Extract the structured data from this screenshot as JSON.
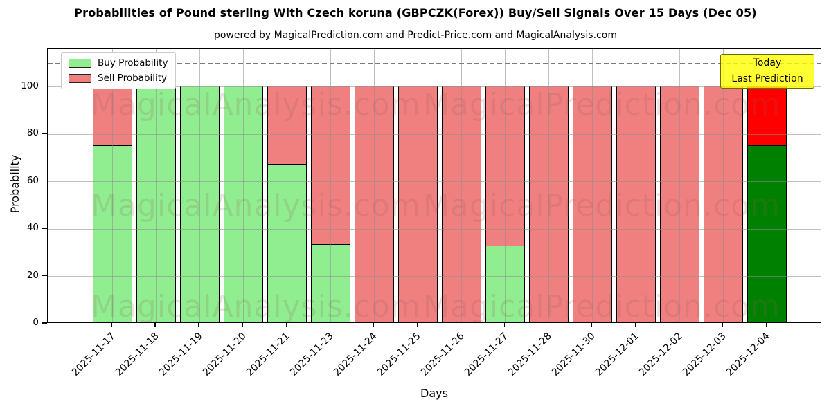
{
  "title": "Probabilities of Pound sterling With Czech koruna (GBPCZK(Forex)) Buy/Sell Signals Over 15 Days (Dec 05)",
  "subtitle": "powered by MagicalPrediction.com and Predict-Price.com and MagicalAnalysis.com",
  "watermarks": {
    "left_text": "MagicalAnalysis.com",
    "right_text": "MagicalPrediction.com"
  },
  "legend": [
    {
      "label": "Buy Probability",
      "color": "#90ee90"
    },
    {
      "label": "Sell Probability",
      "color": "#f08080"
    }
  ],
  "annotation": {
    "line1": "Today",
    "line2": "Last Prediction",
    "bg_color": "#ffff00"
  },
  "colors": {
    "buy": "#90ee90",
    "sell": "#f08080",
    "buy_today": "#008000",
    "sell_today": "#ff0000",
    "bar_edge": "#000000",
    "grid": "#8c8c8c",
    "dashed_line": "#7a7a7a"
  },
  "chart_data": {
    "type": "bar",
    "stacked": true,
    "title": "Probabilities of Pound sterling With Czech koruna (GBPCZK(Forex)) Buy/Sell Signals Over 15 Days (Dec 05)",
    "xlabel": "Days",
    "ylabel": "Probability",
    "ylim": [
      0,
      116
    ],
    "yticks": [
      0,
      20,
      40,
      60,
      80,
      100
    ],
    "dashed_line_y": 110,
    "grid": true,
    "legend_position": "upper left",
    "categories": [
      "2025-11-17",
      "2025-11-18",
      "2025-11-19",
      "2025-11-20",
      "2025-11-21",
      "2025-11-23",
      "2025-11-24",
      "2025-11-25",
      "2025-11-26",
      "2025-11-27",
      "2025-11-28",
      "2025-11-30",
      "2025-12-01",
      "2025-12-02",
      "2025-12-03",
      "2025-12-04"
    ],
    "series": [
      {
        "name": "Buy Probability",
        "color": "#90ee90",
        "today_color": "#008000",
        "values": [
          75,
          100,
          100,
          100,
          67,
          33,
          0,
          0,
          0,
          32.5,
          0,
          0,
          0,
          0,
          0,
          75
        ]
      },
      {
        "name": "Sell Probability",
        "color": "#f08080",
        "today_color": "#ff0000",
        "values": [
          25,
          0,
          0,
          0,
          33,
          67,
          100,
          100,
          100,
          67.5,
          100,
          100,
          100,
          100,
          100,
          25
        ]
      }
    ],
    "today_index": 15
  }
}
